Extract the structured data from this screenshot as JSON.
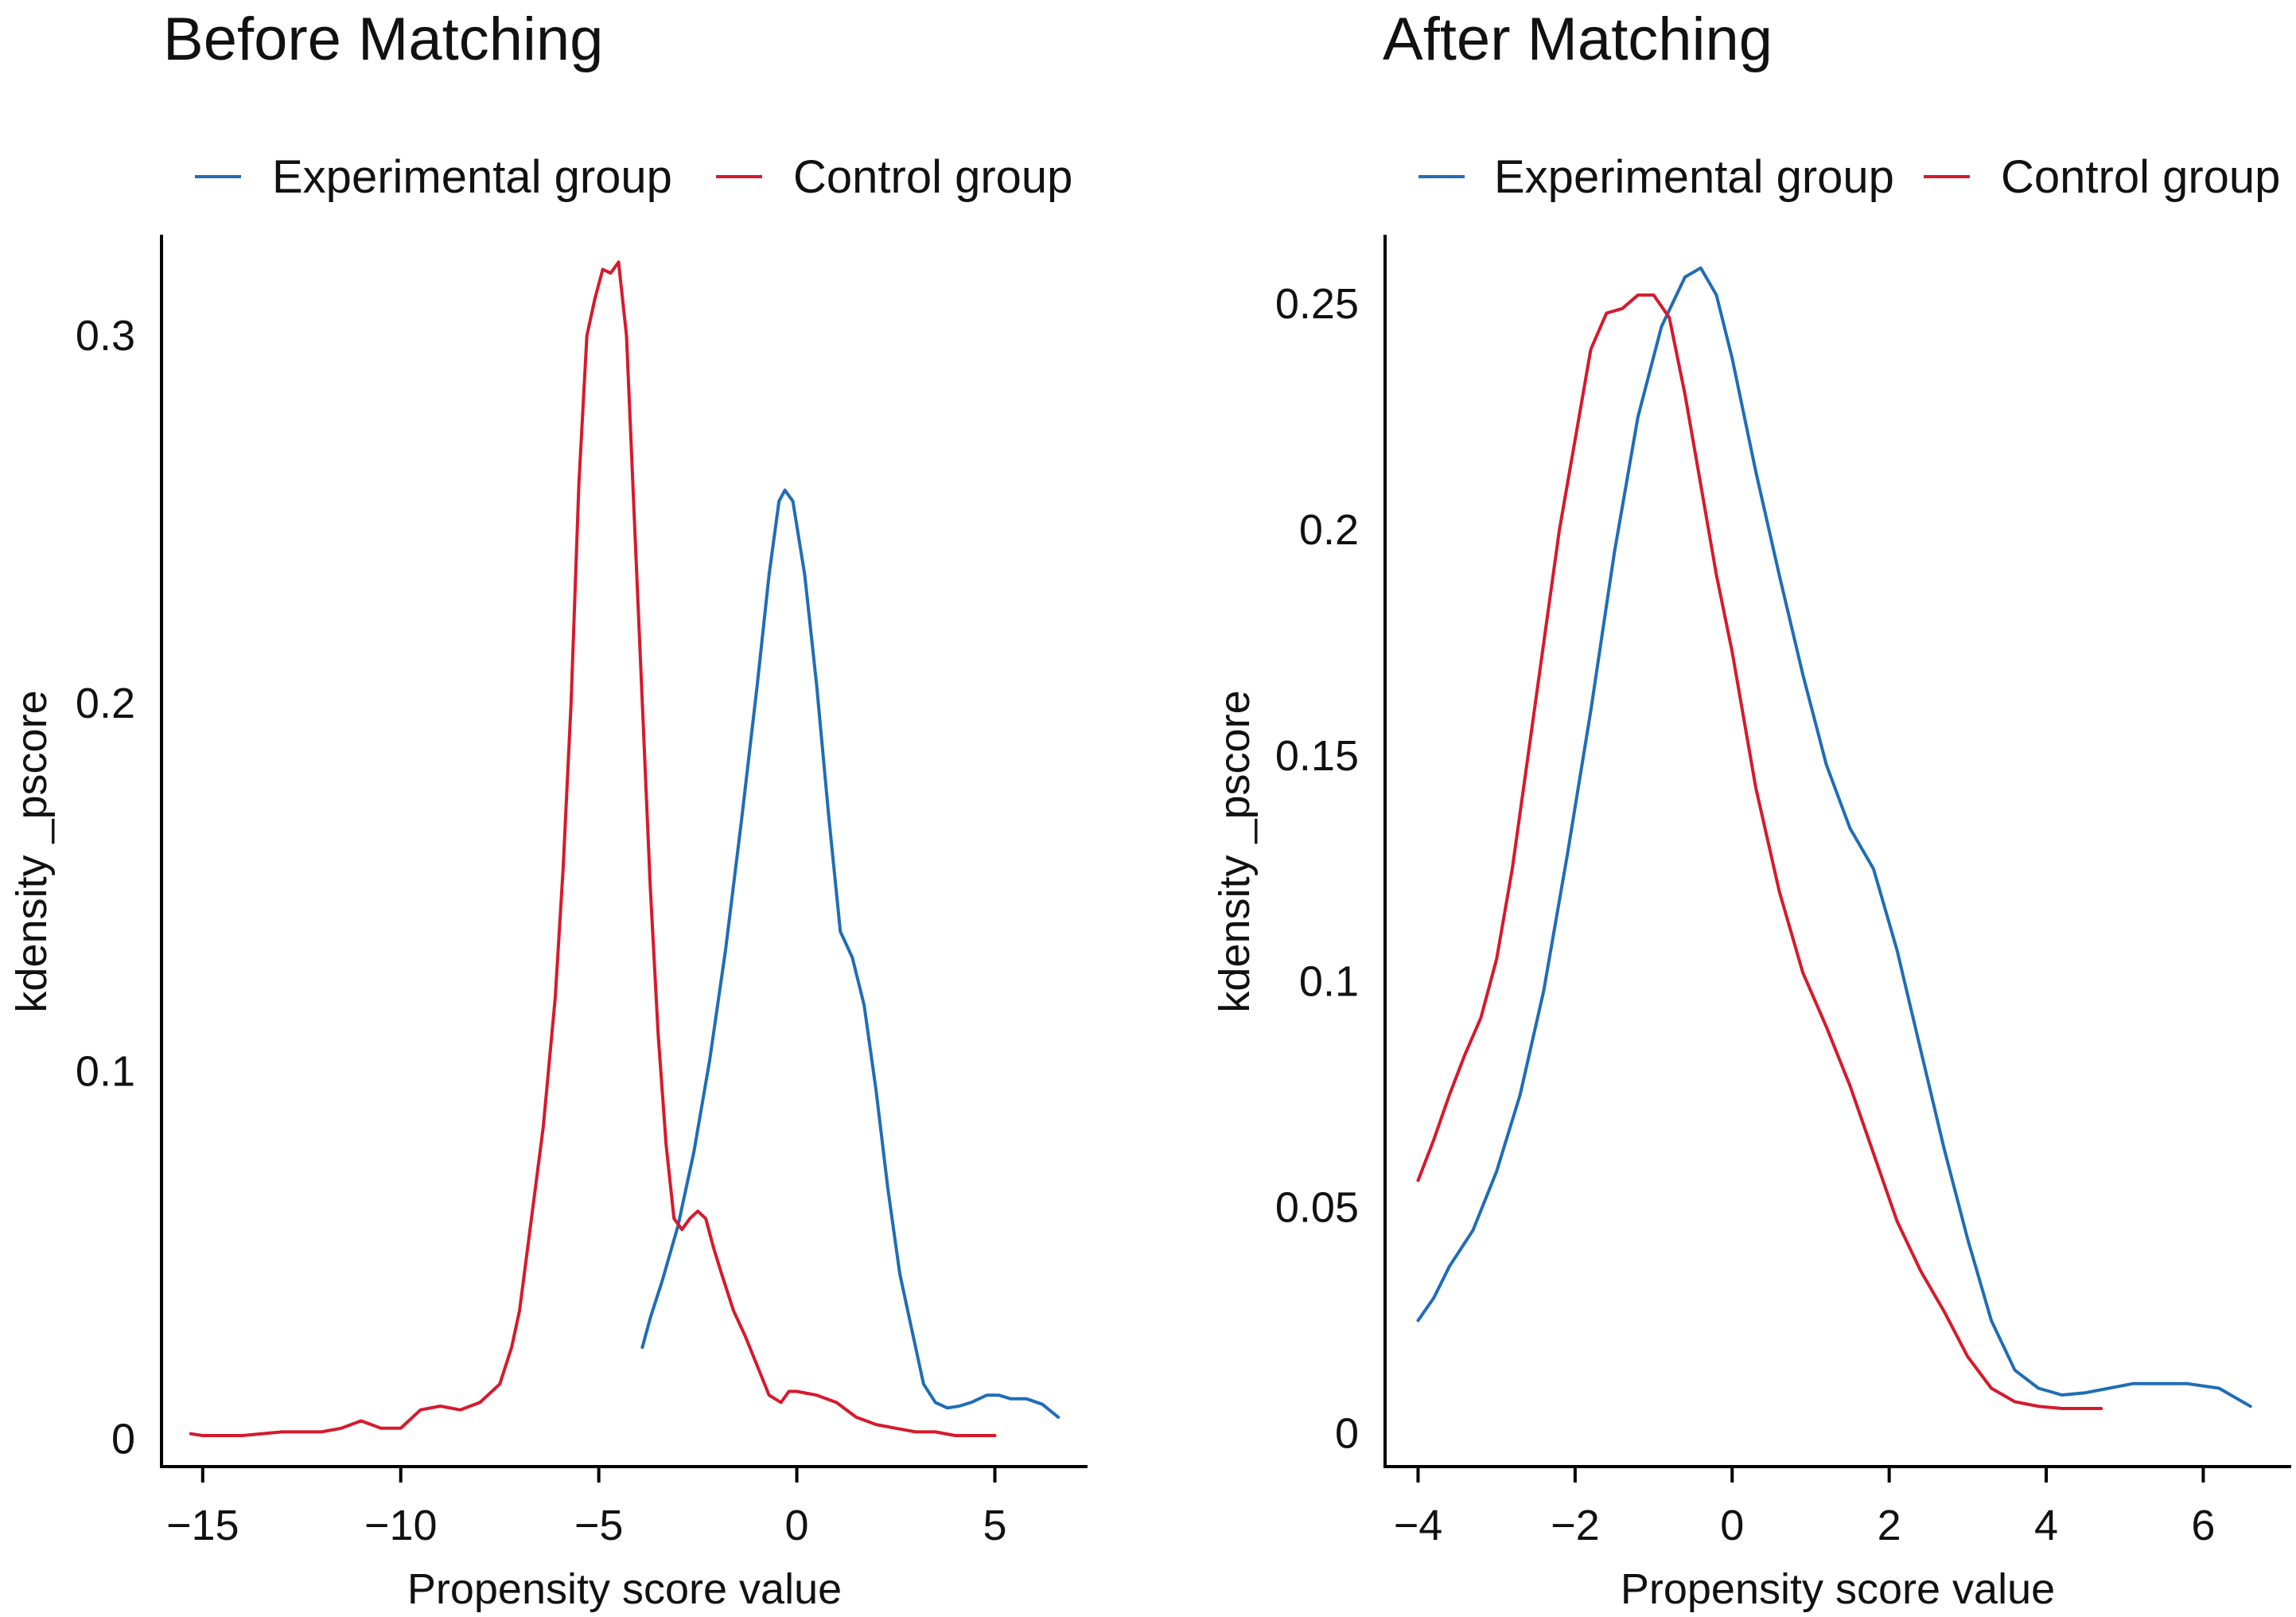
{
  "colors": {
    "experimental": "#1f6db6",
    "control": "#d7192c",
    "axis": "#000000"
  },
  "chart_data": [
    {
      "type": "line",
      "title": "Before Matching",
      "xlabel": "Propensity score value",
      "ylabel": "kdensity _pscore",
      "xlim": [
        -16,
        7.3
      ],
      "ylim": [
        -0.007,
        0.327
      ],
      "xticks": [
        -15,
        -10,
        -5,
        0,
        5
      ],
      "xtick_labels": [
        "−15",
        "−10",
        "−5",
        "0",
        "5"
      ],
      "yticks": [
        0,
        0.1,
        0.2,
        0.3
      ],
      "ytick_labels": [
        "0",
        "0.1",
        "0.2",
        "0.3"
      ],
      "legend": [
        "Experimental group",
        "Control group"
      ],
      "series": [
        {
          "name": "Experimental group",
          "color": "#1f6db6",
          "x": [
            -3.9,
            -3.7,
            -3.4,
            -3.0,
            -2.6,
            -2.2,
            -1.8,
            -1.4,
            -1.0,
            -0.7,
            -0.45,
            -0.3,
            -0.1,
            0.2,
            0.5,
            0.8,
            1.1,
            1.4,
            1.7,
            2.0,
            2.3,
            2.6,
            2.9,
            3.2,
            3.5,
            3.8,
            4.1,
            4.4,
            4.8,
            5.1,
            5.4,
            5.8,
            6.2,
            6.6
          ],
          "y": [
            0.025,
            0.033,
            0.043,
            0.058,
            0.078,
            0.103,
            0.133,
            0.168,
            0.205,
            0.235,
            0.255,
            0.258,
            0.255,
            0.235,
            0.205,
            0.17,
            0.138,
            0.131,
            0.118,
            0.095,
            0.068,
            0.045,
            0.03,
            0.015,
            0.01,
            0.0085,
            0.009,
            0.01,
            0.012,
            0.012,
            0.011,
            0.011,
            0.0095,
            0.006
          ]
        },
        {
          "name": "Control group",
          "color": "#d7192c",
          "x": [
            -15.3,
            -15.0,
            -14.0,
            -13.0,
            -12.5,
            -12.0,
            -11.5,
            -11.0,
            -10.5,
            -10.0,
            -9.5,
            -9.0,
            -8.5,
            -8.0,
            -7.5,
            -7.2,
            -7.0,
            -6.7,
            -6.4,
            -6.1,
            -5.9,
            -5.7,
            -5.5,
            -5.3,
            -5.1,
            -4.9,
            -4.7,
            -4.5,
            -4.3,
            -4.1,
            -3.9,
            -3.7,
            -3.5,
            -3.3,
            -3.1,
            -2.9,
            -2.7,
            -2.5,
            -2.3,
            -2.1,
            -1.9,
            -1.6,
            -1.3,
            -1.0,
            -0.7,
            -0.4,
            -0.2,
            0.0,
            0.5,
            1.0,
            1.5,
            2.0,
            2.5,
            3.0,
            3.5,
            4.0,
            4.5,
            5.0
          ],
          "y": [
            0.0015,
            0.001,
            0.001,
            0.002,
            0.002,
            0.002,
            0.003,
            0.005,
            0.003,
            0.003,
            0.008,
            0.009,
            0.008,
            0.01,
            0.015,
            0.025,
            0.035,
            0.06,
            0.085,
            0.12,
            0.155,
            0.2,
            0.26,
            0.3,
            0.31,
            0.318,
            0.317,
            0.32,
            0.3,
            0.25,
            0.2,
            0.15,
            0.11,
            0.08,
            0.06,
            0.057,
            0.06,
            0.062,
            0.06,
            0.052,
            0.045,
            0.035,
            0.028,
            0.02,
            0.012,
            0.01,
            0.013,
            0.013,
            0.012,
            0.01,
            0.006,
            0.004,
            0.003,
            0.002,
            0.002,
            0.001,
            0.001,
            0.001
          ]
        }
      ]
    },
    {
      "type": "line",
      "title": "After Matching",
      "xlabel": "Propensity score value",
      "ylabel": "kdensity _pscore",
      "xlim": [
        -4.4,
        7.1
      ],
      "ylim": [
        -0.007,
        0.265
      ],
      "xticks": [
        -4,
        -2,
        0,
        2,
        4,
        6
      ],
      "xtick_labels": [
        "−4",
        "−2",
        "0",
        "2",
        "4",
        "6"
      ],
      "yticks": [
        0,
        0.05,
        0.1,
        0.15,
        0.2,
        0.25
      ],
      "ytick_labels": [
        "0",
        "0.05",
        "0.1",
        "0.15",
        "0.2",
        "0.25"
      ],
      "legend": [
        "Experimental group",
        "Control group"
      ],
      "series": [
        {
          "name": "Experimental group",
          "color": "#1f6db6",
          "x": [
            -4.0,
            -3.8,
            -3.6,
            -3.3,
            -3.0,
            -2.7,
            -2.4,
            -2.1,
            -1.8,
            -1.5,
            -1.2,
            -0.9,
            -0.6,
            -0.4,
            -0.2,
            0.0,
            0.3,
            0.6,
            0.9,
            1.2,
            1.5,
            1.8,
            2.1,
            2.4,
            2.7,
            3.0,
            3.3,
            3.6,
            3.9,
            4.2,
            4.5,
            4.8,
            5.1,
            5.4,
            5.8,
            6.2,
            6.6
          ],
          "y": [
            0.025,
            0.03,
            0.037,
            0.045,
            0.058,
            0.075,
            0.098,
            0.128,
            0.16,
            0.195,
            0.225,
            0.245,
            0.256,
            0.258,
            0.252,
            0.238,
            0.213,
            0.19,
            0.168,
            0.148,
            0.134,
            0.125,
            0.107,
            0.085,
            0.063,
            0.043,
            0.025,
            0.014,
            0.01,
            0.0085,
            0.009,
            0.01,
            0.011,
            0.011,
            0.011,
            0.01,
            0.006
          ]
        },
        {
          "name": "Control group",
          "color": "#d7192c",
          "x": [
            -4.0,
            -3.8,
            -3.6,
            -3.4,
            -3.2,
            -3.0,
            -2.8,
            -2.6,
            -2.4,
            -2.2,
            -2.0,
            -1.8,
            -1.6,
            -1.4,
            -1.2,
            -1.0,
            -0.8,
            -0.6,
            -0.4,
            -0.2,
            0.0,
            0.3,
            0.6,
            0.9,
            1.2,
            1.5,
            1.8,
            2.1,
            2.4,
            2.7,
            3.0,
            3.3,
            3.6,
            3.9,
            4.2,
            4.5,
            4.7
          ],
          "y": [
            0.056,
            0.065,
            0.075,
            0.084,
            0.092,
            0.105,
            0.125,
            0.15,
            0.175,
            0.2,
            0.22,
            0.24,
            0.248,
            0.249,
            0.252,
            0.252,
            0.247,
            0.23,
            0.21,
            0.19,
            0.173,
            0.143,
            0.12,
            0.102,
            0.09,
            0.077,
            0.062,
            0.047,
            0.036,
            0.027,
            0.017,
            0.01,
            0.007,
            0.006,
            0.0055,
            0.0055,
            0.0055
          ]
        }
      ]
    }
  ]
}
